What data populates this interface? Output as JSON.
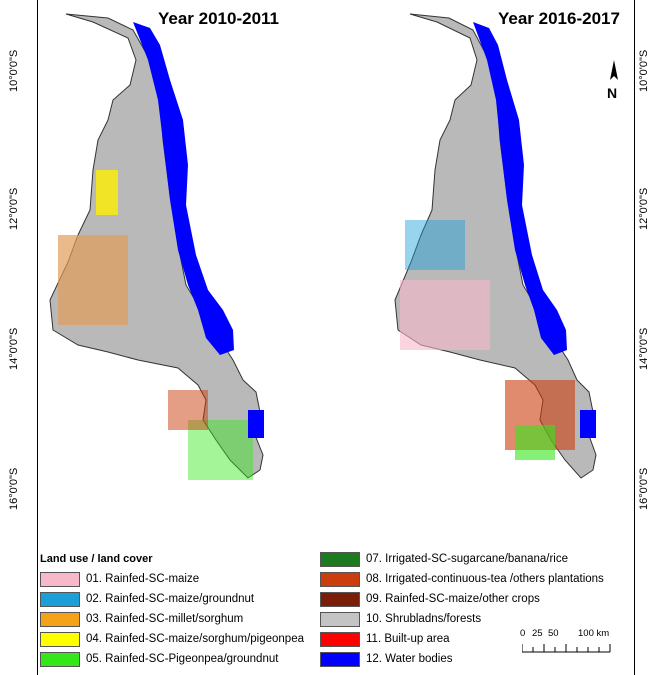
{
  "maps": [
    {
      "title": "Year 2010-2011"
    },
    {
      "title": "Year 2016-2017"
    }
  ],
  "latitude_labels": [
    "10°0'0\"S",
    "12°0'0\"S",
    "14°0'0\"S",
    "16°0'0\"S"
  ],
  "legend": {
    "title": "Land use / land cover",
    "items": [
      {
        "label": "01. Rainfed-SC-maize",
        "color": "#f7b8c9"
      },
      {
        "label": "02. Rainfed-SC-maize/groundnut",
        "color": "#1a9fd6"
      },
      {
        "label": "03. Rainfed-SC-millet/sorghum",
        "color": "#f4a21a"
      },
      {
        "label": "04. Rainfed-SC-maize/sorghum/pigeonpea",
        "color": "#ffff00"
      },
      {
        "label": "05. Rainfed-SC-Pigeonpea/groundnut",
        "color": "#35e61a"
      },
      {
        "label": "07. Irrigated-SC-sugarcane/banana/rice",
        "color": "#1e7a1e"
      },
      {
        "label": "08. Irrigated-continuous-tea /others plantations",
        "color": "#cc3d0e"
      },
      {
        "label": "09. Rainfed-SC-maize/other crops",
        "color": "#7a1e0a"
      },
      {
        "label": "10. Shrubladns/forests",
        "color": "#c4c4c4"
      },
      {
        "label": "11. Built-up area",
        "color": "#ff0000"
      },
      {
        "label": "12. Water bodies",
        "color": "#0000ff"
      }
    ]
  },
  "scale_bar": {
    "labels": [
      "0",
      "25",
      "50",
      "100 km"
    ]
  },
  "colors": {
    "lake": "#0000ff",
    "land": "#b9b9b9",
    "border": "#333333"
  }
}
